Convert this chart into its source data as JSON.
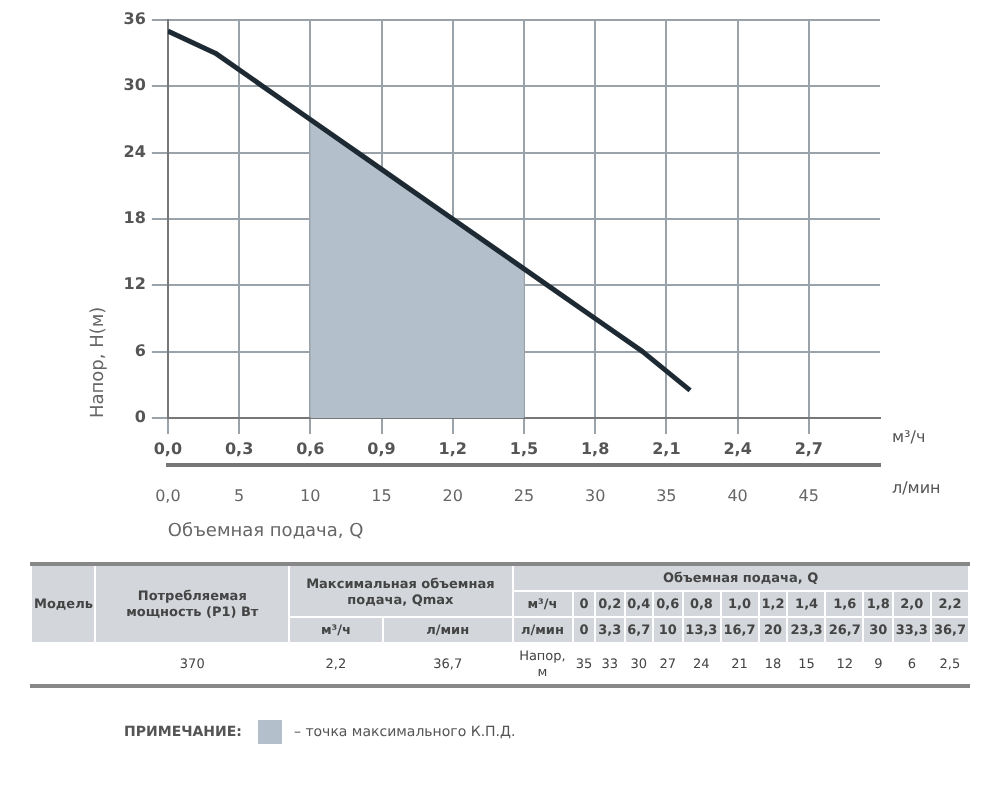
{
  "chart_data": {
    "type": "line",
    "xlabel": "Объемная подача, Q",
    "ylabel": "Напор, H(м)",
    "x": [
      0,
      0.2,
      0.4,
      0.6,
      0.8,
      1.0,
      1.2,
      1.4,
      1.6,
      1.8,
      2.0,
      2.2
    ],
    "series": [
      {
        "color": "#1e2a33",
        "values": [
          35,
          33,
          30,
          27,
          24,
          21,
          18,
          15,
          12,
          9,
          6,
          2.5
        ]
      },
      {
        "type": "area",
        "name": "– точка максимального К.П.Д.",
        "color": "#b3bfca",
        "x": [
          0.6,
          0.8,
          1.0,
          1.2,
          1.4,
          1.5
        ],
        "values": [
          27,
          24,
          21,
          18,
          15,
          13.5
        ]
      }
    ],
    "xlim": [
      0,
      3
    ],
    "xticks": [
      {
        "value": 0,
        "label": "0,0"
      },
      {
        "value": 0.3,
        "label": "0,3"
      },
      {
        "value": 0.6,
        "label": "0,6"
      },
      {
        "value": 0.9,
        "label": "0,9"
      },
      {
        "value": 1.2,
        "label": "1,2"
      },
      {
        "value": 1.5,
        "label": "1,5"
      },
      {
        "value": 1.8,
        "label": "1,8"
      },
      {
        "value": 2.1,
        "label": "2,1"
      },
      {
        "value": 2.4,
        "label": "2,4"
      },
      {
        "value": 2.7,
        "label": "2,7"
      }
    ],
    "x2lim": [
      0,
      50
    ],
    "x2ticks": [
      {
        "value": 0,
        "label": "0,0"
      },
      5,
      10,
      15,
      20,
      25,
      30,
      35,
      40,
      45
    ],
    "ylim": [
      0,
      36
    ],
    "yticks": [
      0,
      6,
      12,
      18,
      24,
      30,
      36
    ],
    "grid": true,
    "marker": "none",
    "legend": "bottom",
    "annotations": [
      "Модель",
      "Потребляемая мощность (P1) Вт",
      "Максимальная объемная подача, Qmax",
      "м³/ч",
      "л/мин",
      "Объемная подача, Q",
      "м³/ч",
      "л/мин",
      "370",
      "2,2",
      "36,7",
      "Напор, м",
      "0",
      "0,2",
      "0,4",
      "0,6",
      "0,8",
      "1,0",
      "1,2",
      "1,4",
      "1,6",
      "1,8",
      "2,0",
      "2,2",
      "0",
      "3,3",
      "6,7",
      "10",
      "13,3",
      "16,7",
      "20",
      "23,3",
      "26,7",
      "30",
      "33,3",
      "36,7",
      "ПРИМЕЧАНИЕ:",
      "м³/ч",
      "л/мин",
      "35",
      "33",
      "30",
      "27",
      "24",
      "21",
      "18",
      "15",
      "12",
      "9",
      "6",
      "2,5"
    ]
  }
}
